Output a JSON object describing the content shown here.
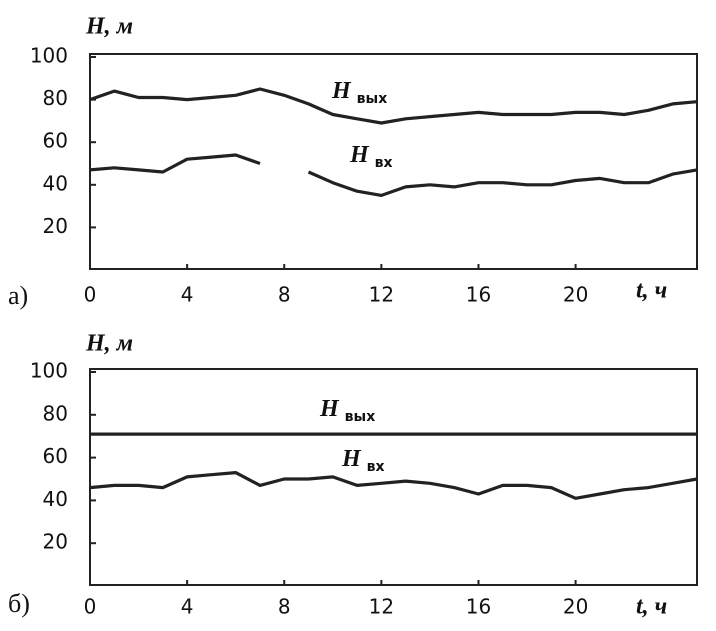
{
  "chart_data": [
    {
      "type": "line",
      "panel_label": "а)",
      "y_label": "H, м",
      "x_label": "t, ч",
      "x": [
        0,
        1,
        2,
        3,
        4,
        5,
        6,
        7,
        8,
        9,
        10,
        11,
        12,
        13,
        14,
        15,
        16,
        17,
        18,
        19,
        20,
        21,
        22,
        23,
        24,
        25
      ],
      "xlim": [
        0,
        25
      ],
      "ylim": [
        0,
        100
      ],
      "xticks": [
        0,
        4,
        8,
        12,
        16,
        20
      ],
      "yticks": [
        20,
        40,
        60,
        80,
        100
      ],
      "series": [
        {
          "name": "H",
          "name_sub": "вых",
          "color": "#222222",
          "values": [
            80,
            84,
            81,
            81,
            80,
            81,
            82,
            85,
            82,
            78,
            73,
            71,
            69,
            71,
            72,
            73,
            74,
            73,
            73,
            73,
            74,
            74,
            73,
            75,
            78,
            79
          ]
        },
        {
          "name": "H",
          "name_sub": "вх",
          "color": "#222222",
          "values": [
            47,
            48,
            47,
            46,
            52,
            53,
            54,
            50,
            null,
            46,
            41,
            37,
            35,
            39,
            40,
            39,
            41,
            41,
            40,
            40,
            42,
            43,
            41,
            41,
            45,
            47
          ]
        }
      ]
    },
    {
      "type": "line",
      "panel_label": "б)",
      "y_label": "H, м",
      "x_label": "t, ч",
      "x": [
        0,
        1,
        2,
        3,
        4,
        5,
        6,
        7,
        8,
        9,
        10,
        11,
        12,
        13,
        14,
        15,
        16,
        17,
        18,
        19,
        20,
        21,
        22,
        23,
        24,
        25
      ],
      "xlim": [
        0,
        25
      ],
      "ylim": [
        0,
        100
      ],
      "xticks": [
        0,
        4,
        8,
        12,
        16,
        20
      ],
      "yticks": [
        20,
        40,
        60,
        80,
        100
      ],
      "series": [
        {
          "name": "H",
          "name_sub": "вых",
          "color": "#222222",
          "values": [
            71,
            71,
            71,
            71,
            71,
            71,
            71,
            71,
            71,
            71,
            71,
            71,
            71,
            71,
            71,
            71,
            71,
            71,
            71,
            71,
            71,
            71,
            71,
            71,
            71,
            71
          ]
        },
        {
          "name": "H",
          "name_sub": "вх",
          "color": "#222222",
          "values": [
            46,
            47,
            47,
            46,
            51,
            52,
            53,
            47,
            50,
            50,
            51,
            47,
            48,
            49,
            48,
            46,
            43,
            47,
            47,
            46,
            41,
            43,
            45,
            46,
            48,
            50
          ]
        }
      ]
    }
  ]
}
